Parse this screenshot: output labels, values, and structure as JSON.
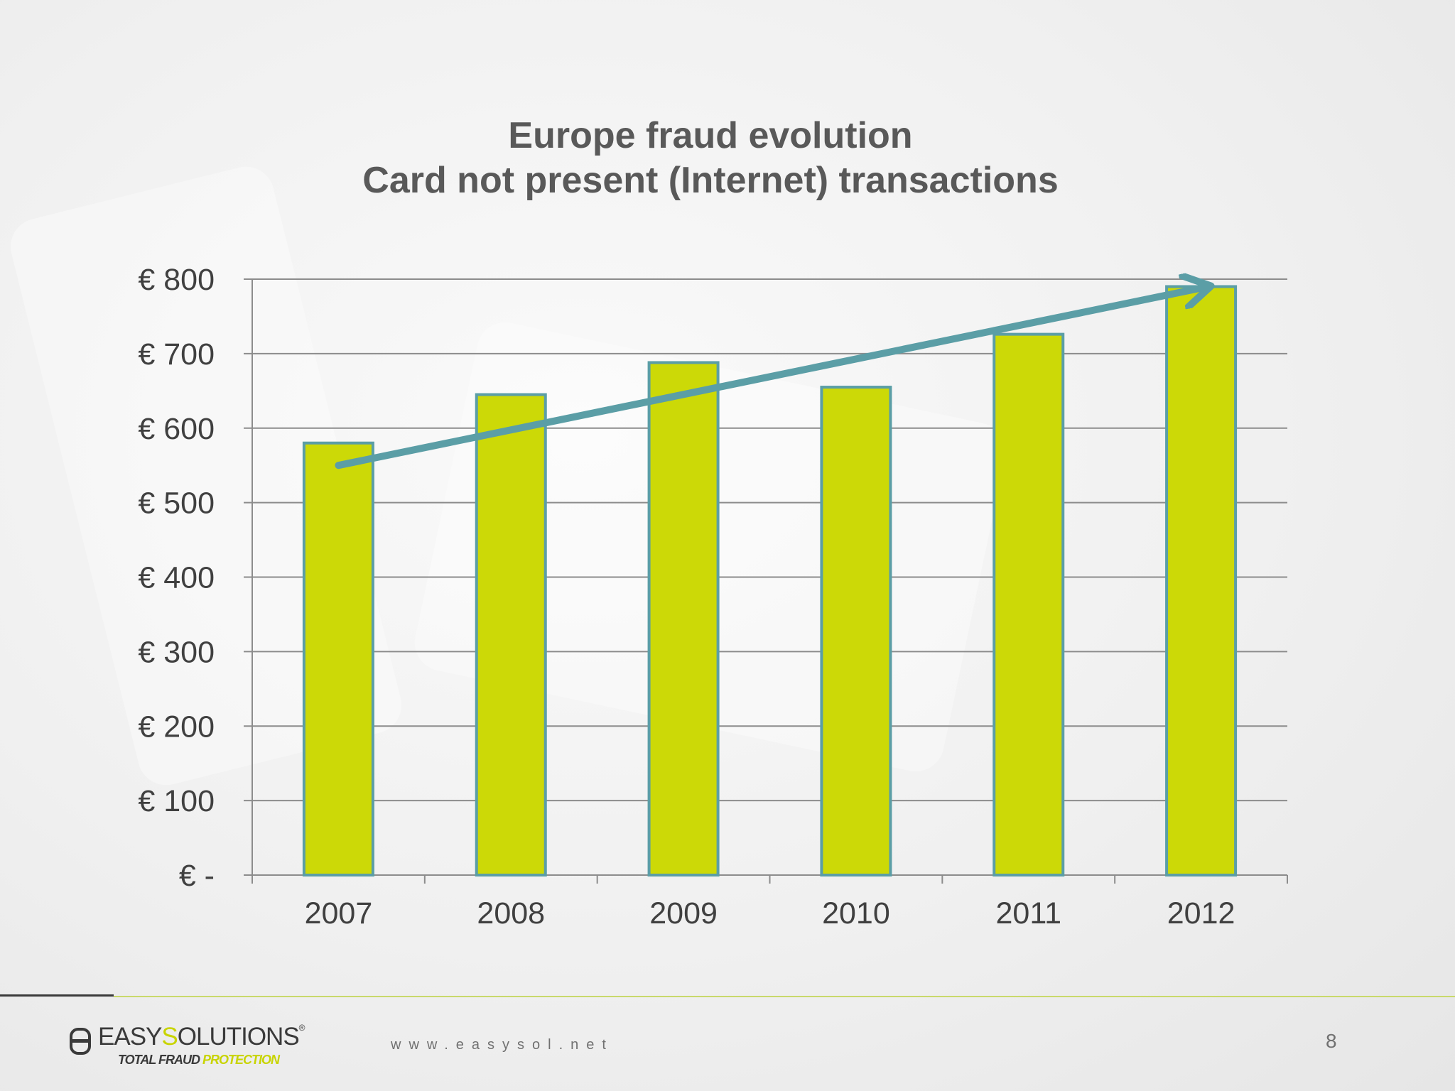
{
  "slide": {
    "title_line1": "Europe fraud evolution",
    "title_line2": "Card not present (Internet) transactions",
    "page_number": "8"
  },
  "footer": {
    "url": "www.easysol.net",
    "logo_text_dark": "EASY",
    "logo_text_accent": "S",
    "logo_text_rest": "OLUTIONS",
    "logo_registered": "®",
    "tagline_dark": "TOTAL FRAUD ",
    "tagline_accent": "PROTECTION"
  },
  "colors": {
    "bar_fill": "#CCD907",
    "bar_stroke": "#5B9EA6",
    "trend_arrow": "#5B9EA6",
    "gridline": "#8C8C8C",
    "text": "#595959"
  },
  "chart_data": {
    "type": "bar",
    "title": "Europe fraud evolution\nCard not present (Internet) transactions",
    "categories": [
      "2007",
      "2008",
      "2009",
      "2010",
      "2011",
      "2012"
    ],
    "values": [
      580,
      645,
      688,
      655,
      726,
      790
    ],
    "xlabel": "",
    "ylabel": "",
    "ylim": [
      0,
      800
    ],
    "yticks": [
      0,
      100,
      200,
      300,
      400,
      500,
      600,
      700,
      800
    ],
    "ytick_labels": [
      "€ -",
      "€ 100",
      "€ 200",
      "€ 300",
      "€ 400",
      "€ 500",
      "€ 600",
      "€ 700",
      "€ 800"
    ],
    "grid": true,
    "legend": "none",
    "trend_arrow": {
      "from": {
        "x": "2007",
        "y": 550
      },
      "to": {
        "x": "2012",
        "y": 790
      }
    }
  }
}
